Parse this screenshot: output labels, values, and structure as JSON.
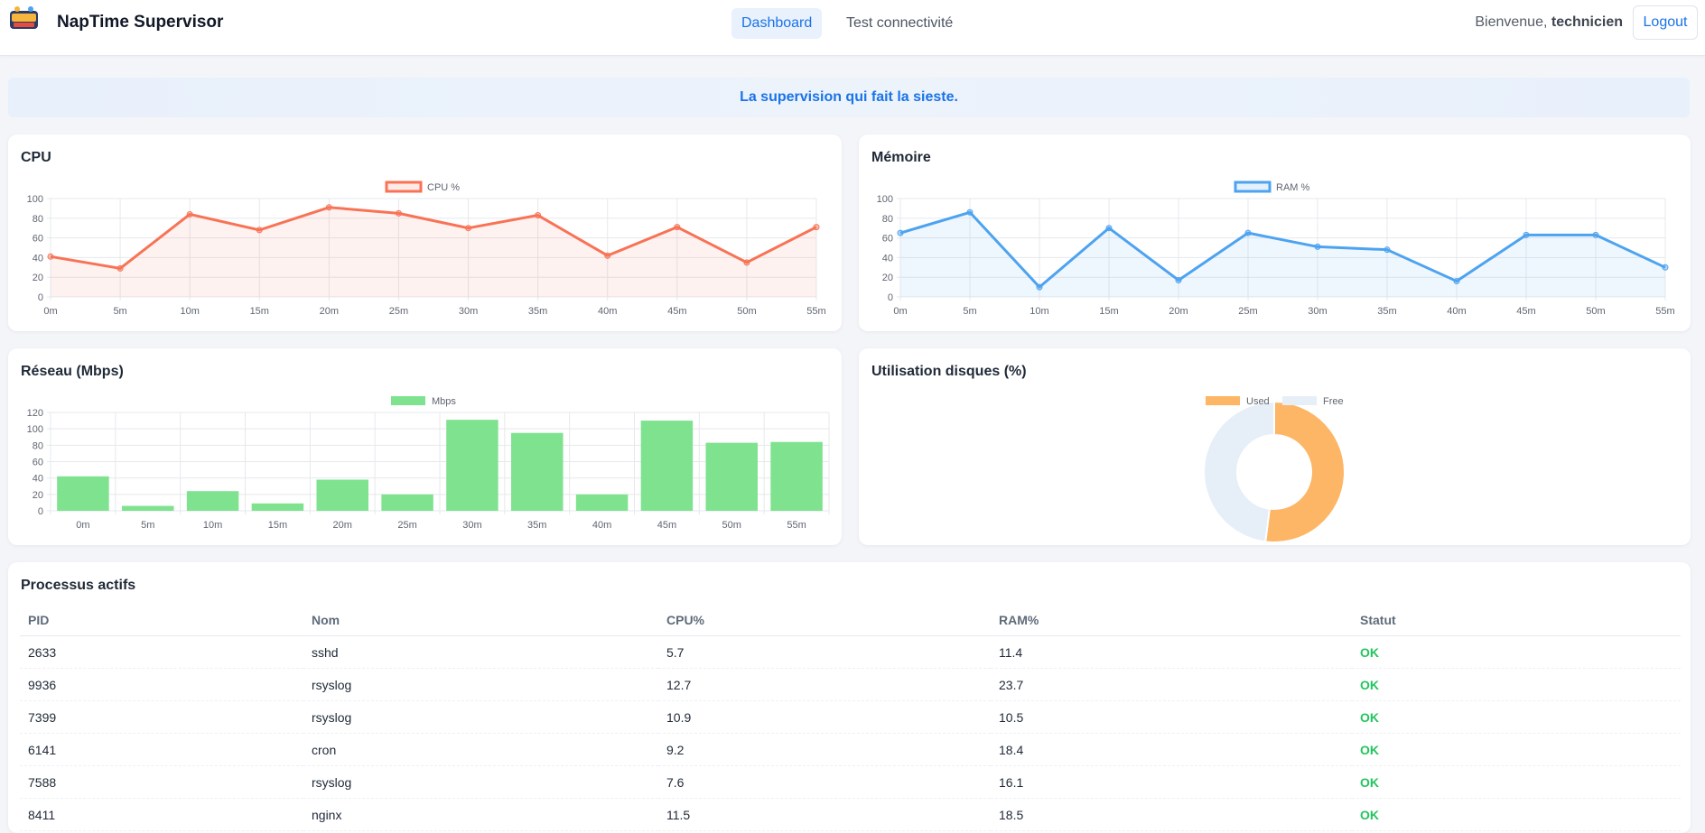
{
  "header": {
    "brand": "NapTime Supervisor",
    "nav": [
      {
        "label": "Dashboard",
        "active": true
      },
      {
        "label": "Test connectivité",
        "active": false
      }
    ],
    "welcome_prefix": "Bienvenue,",
    "username": "technicien",
    "logout_label": "Logout"
  },
  "banner": {
    "text": "La supervision qui fait la sieste."
  },
  "cpu_card": {
    "title": "CPU"
  },
  "mem_card": {
    "title": "Mémoire"
  },
  "net_card": {
    "title": "Réseau (Mbps)"
  },
  "disk_card": {
    "title": "Utilisation disques (%)"
  },
  "processes": {
    "title": "Processus actifs",
    "columns": [
      "PID",
      "Nom",
      "CPU%",
      "RAM%",
      "Statut"
    ],
    "rows": [
      [
        "2633",
        "sshd",
        "5.7",
        "11.4",
        "OK"
      ],
      [
        "9936",
        "rsyslog",
        "12.7",
        "23.7",
        "OK"
      ],
      [
        "7399",
        "rsyslog",
        "10.9",
        "10.5",
        "OK"
      ],
      [
        "6141",
        "cron",
        "9.2",
        "18.4",
        "OK"
      ],
      [
        "7588",
        "rsyslog",
        "7.6",
        "16.1",
        "OK"
      ],
      [
        "8411",
        "nginx",
        "11.5",
        "18.5",
        "OK"
      ]
    ]
  },
  "colors": {
    "cpu": "#f87356",
    "ram": "#4da3f0",
    "net": "#7ee28f",
    "disk_used": "#fdb566",
    "disk_free": "#e6eef8",
    "accent": "#1a73e8",
    "ok": "#22c55e"
  },
  "chart_data": [
    {
      "type": "line",
      "series": [
        {
          "name": "CPU %",
          "values": [
            41,
            29,
            84,
            68,
            91,
            85,
            70,
            83,
            42,
            71,
            35,
            71
          ]
        }
      ],
      "categories": [
        "0m",
        "5m",
        "10m",
        "15m",
        "20m",
        "25m",
        "30m",
        "35m",
        "40m",
        "45m",
        "50m",
        "55m"
      ],
      "ylim": [
        0,
        100
      ],
      "yticks": [
        0,
        20,
        40,
        60,
        80,
        100
      ],
      "fill": true,
      "grid": true,
      "legend": "top"
    },
    {
      "type": "line",
      "series": [
        {
          "name": "RAM %",
          "values": [
            65,
            86,
            10,
            70,
            17,
            65,
            51,
            48,
            16,
            63,
            63,
            30
          ]
        }
      ],
      "categories": [
        "0m",
        "5m",
        "10m",
        "15m",
        "20m",
        "25m",
        "30m",
        "35m",
        "40m",
        "45m",
        "50m",
        "55m"
      ],
      "ylim": [
        0,
        100
      ],
      "yticks": [
        0,
        20,
        40,
        60,
        80,
        100
      ],
      "fill": true,
      "grid": true,
      "legend": "top"
    },
    {
      "type": "bar",
      "series": [
        {
          "name": "Mbps",
          "values": [
            42,
            6,
            24,
            9,
            38,
            20,
            111,
            95,
            20,
            110,
            83,
            84
          ]
        }
      ],
      "categories": [
        "0m",
        "5m",
        "10m",
        "15m",
        "20m",
        "25m",
        "30m",
        "35m",
        "40m",
        "45m",
        "50m",
        "55m"
      ],
      "ylim": [
        0,
        120
      ],
      "yticks": [
        0,
        20,
        40,
        60,
        80,
        100,
        120
      ],
      "grid": true,
      "legend": "top"
    },
    {
      "type": "pie",
      "donut": true,
      "labels": [
        "Used",
        "Free"
      ],
      "values": [
        52,
        48
      ],
      "legend": "top"
    }
  ]
}
